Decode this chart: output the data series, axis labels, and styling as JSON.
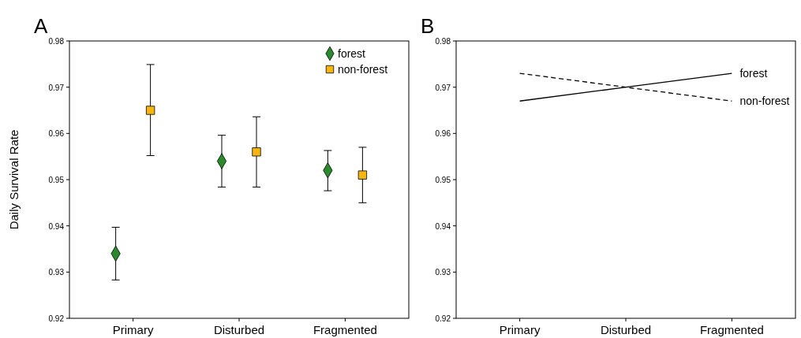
{
  "chart_data": [
    {
      "type": "scatter",
      "title": "A",
      "ylabel": "Daily Survival Rate",
      "categories": [
        "Primary",
        "Disturbed",
        "Fragmented"
      ],
      "ylim": [
        0.92,
        0.98
      ],
      "yticks": [
        0.92,
        0.93,
        0.94,
        0.95,
        0.96,
        0.97,
        0.98
      ],
      "legend": "top right",
      "grid": false,
      "series": [
        {
          "name": "forest",
          "color": "#2b8a2b",
          "marker": "diamond",
          "values": [
            0.934,
            0.954,
            0.952
          ],
          "errors": [
            [
              0.9283,
              0.9397
            ],
            [
              0.9484,
              0.9596
            ],
            [
              0.9476,
              0.9563
            ]
          ]
        },
        {
          "name": "non-forest",
          "color": "#f7b511",
          "marker": "square",
          "values": [
            0.965,
            0.956,
            0.951
          ],
          "errors": [
            [
              0.9552,
              0.9749
            ],
            [
              0.9484,
              0.9636
            ],
            [
              0.945,
              0.957
            ]
          ]
        }
      ]
    },
    {
      "type": "line",
      "title": "B",
      "categories": [
        "Primary",
        "Disturbed",
        "Fragmented"
      ],
      "ylim": [
        0.92,
        0.98
      ],
      "yticks": [
        0.92,
        0.93,
        0.94,
        0.95,
        0.96,
        0.97,
        0.98
      ],
      "legend": false,
      "grid": false,
      "marker": "none",
      "series": [
        {
          "name": "forest",
          "color": "#000000",
          "line_style": "solid",
          "values": [
            0.967,
            0.97,
            0.973
          ]
        },
        {
          "name": "non-forest",
          "color": "#000000",
          "line_style": "dashed",
          "values": [
            0.973,
            0.97,
            0.967
          ]
        }
      ]
    }
  ]
}
